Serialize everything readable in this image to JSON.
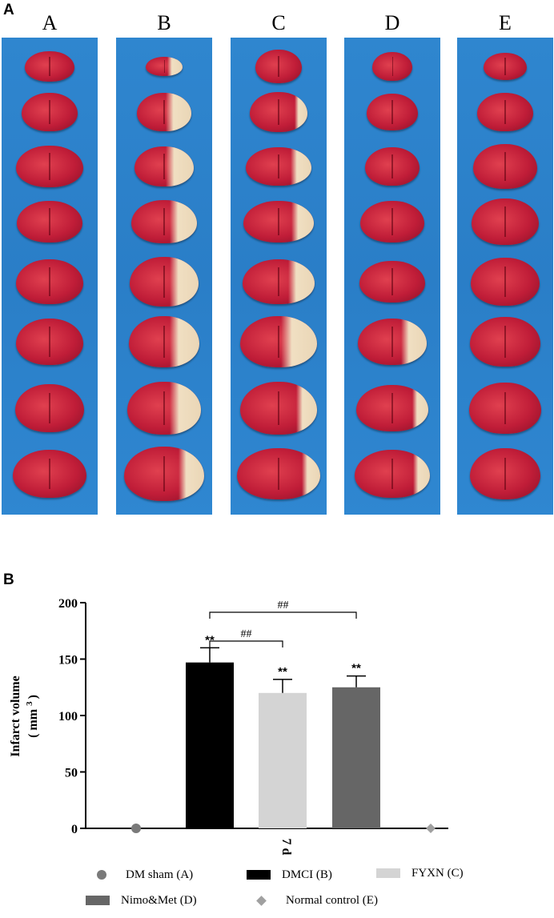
{
  "panel_a": {
    "letter": "A",
    "columns": [
      {
        "label": "A",
        "infarct": [
          0,
          0,
          0,
          0,
          0,
          0,
          0,
          0
        ]
      },
      {
        "label": "B",
        "infarct": [
          0.3,
          0.35,
          0.35,
          0.3,
          0.3,
          0.3,
          0.3,
          0.2
        ]
      },
      {
        "label": "C",
        "infarct": [
          0,
          0.1,
          0.2,
          0.2,
          0.25,
          0.35,
          0.15,
          0.1
        ]
      },
      {
        "label": "D",
        "infarct": [
          0,
          0,
          0,
          0,
          0,
          0.25,
          0.1,
          0.1
        ]
      },
      {
        "label": "E",
        "infarct": [
          0,
          0,
          0,
          0,
          0,
          0,
          0,
          0
        ]
      }
    ]
  },
  "panel_b": {
    "letter": "B",
    "ylabel_line1": "Infarct volume",
    "ylabel_line2": "( mm",
    "ylabel_sup": "3",
    "ylabel_close": ")",
    "xtick": "7 d",
    "significance": [
      "##",
      "##"
    ],
    "star_label": "**",
    "legend": [
      {
        "label": "DM sham (A)",
        "marker": "circle",
        "color": "#7a7a7a"
      },
      {
        "label": "DMCI (B)",
        "marker": "rect",
        "color": "#000000"
      },
      {
        "label": "FYXN (C)",
        "marker": "rect",
        "color": "#d4d4d4"
      },
      {
        "label": "Nimo&Met (D)",
        "marker": "rect",
        "color": "#666666"
      },
      {
        "label": "Normal control (E)",
        "marker": "diamond",
        "color": "#a0a0a0"
      }
    ]
  },
  "chart_data": {
    "type": "bar",
    "categories": [
      "DM sham (A)",
      "DMCI (B)",
      "FYXN (C)",
      "Nimo&Met (D)",
      "Normal control (E)"
    ],
    "values": [
      0,
      147,
      120,
      125,
      0
    ],
    "errors": [
      0,
      13,
      12,
      10,
      0
    ],
    "ylabel": "Infarct volume (mm3)",
    "xlabel": "7 d",
    "ylim": [
      0,
      200
    ],
    "yticks": [
      0,
      50,
      100,
      150,
      200
    ],
    "annotations": [
      "**",
      "**",
      "**",
      "##",
      "##"
    ],
    "grid": false,
    "legend_position": "bottom"
  }
}
